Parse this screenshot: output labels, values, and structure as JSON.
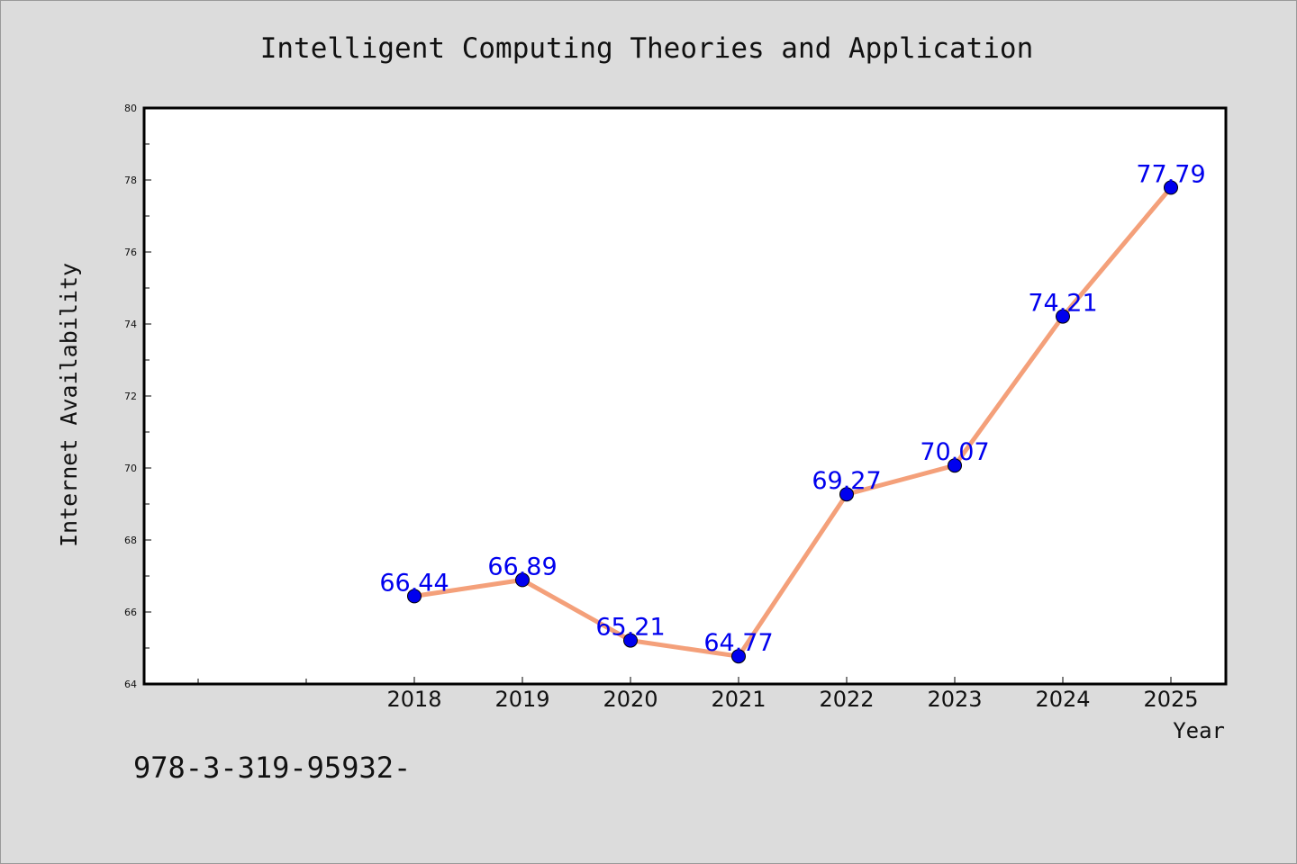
{
  "chart_data": {
    "type": "line",
    "title": "Intelligent Computing Theories and Application",
    "xlabel": "Year",
    "ylabel": "Internet Availability",
    "categories": [
      "2018",
      "2019",
      "2020",
      "2021",
      "2022",
      "2023",
      "2024",
      "2025"
    ],
    "series": [
      {
        "values": [
          66.44,
          66.89,
          65.21,
          64.77,
          69.27,
          70.07,
          74.21,
          77.79
        ]
      }
    ],
    "data_labels": [
      "66.44",
      "66.89",
      "65.21",
      "64.77",
      "69.27",
      "70.07",
      "74.21",
      "77.79"
    ],
    "ylim": [
      64,
      80
    ],
    "yticks": [
      64,
      66,
      68,
      70,
      72,
      74,
      76,
      78,
      80
    ],
    "grid": false,
    "line_color": "#f4a07a",
    "marker_color": "#0000ee",
    "label_color": "#0000ee"
  },
  "footnote": "978-3-319-95932-"
}
